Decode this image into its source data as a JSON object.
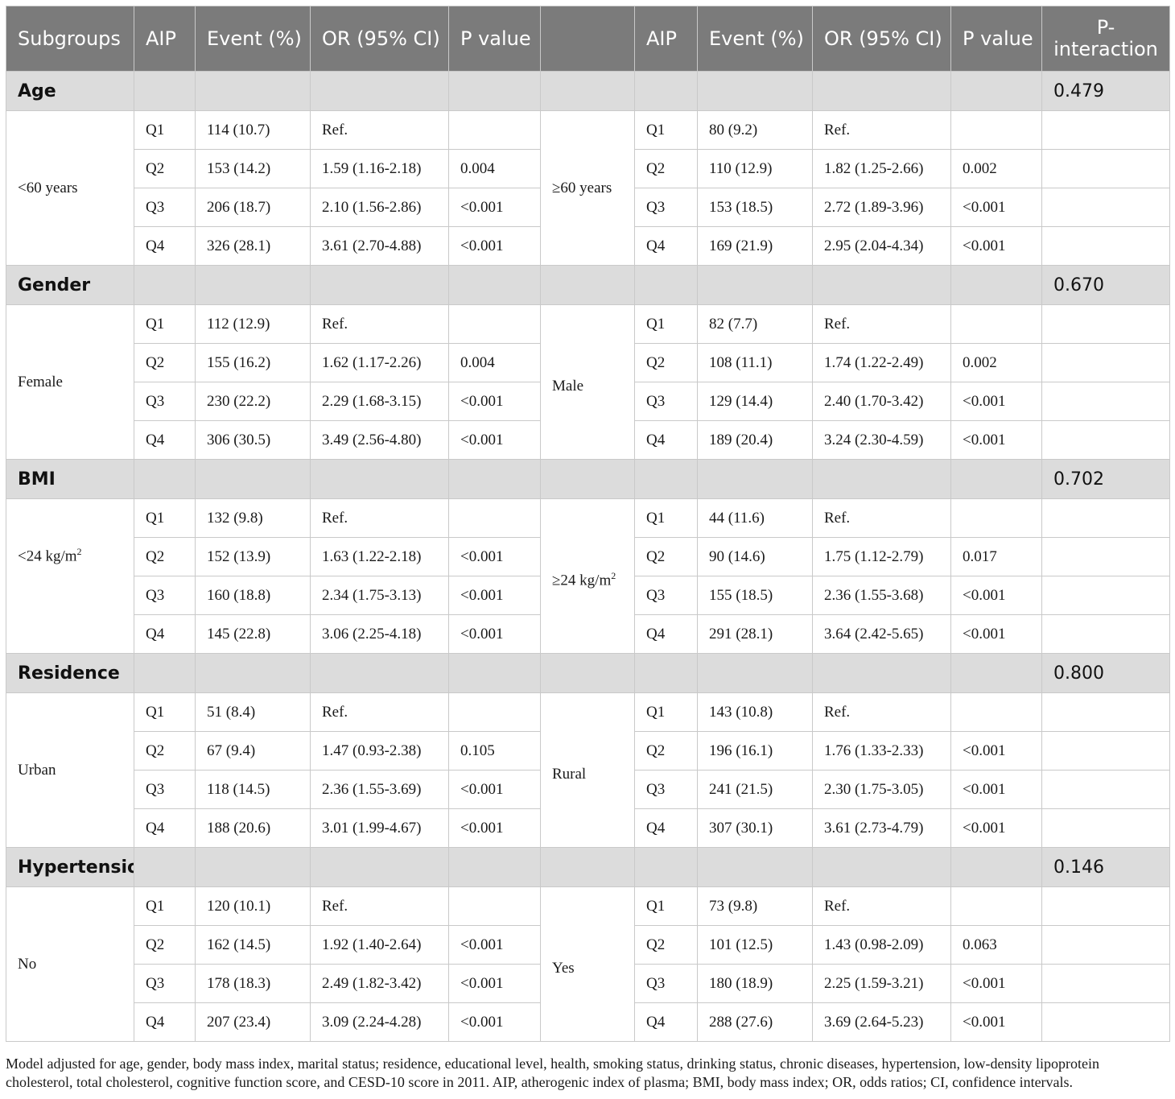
{
  "header": {
    "subgroups": "Subgroups",
    "aip1": "AIP",
    "event1": "Event (%)",
    "or1": "OR (95% CI)",
    "p1": "P value",
    "blank": "",
    "aip2": "AIP",
    "event2": "Event (%)",
    "or2": "OR (95% CI)",
    "p2": "P value",
    "pint": "P-interaction"
  },
  "groups": [
    {
      "name": "Age",
      "p_interaction": "0.479",
      "left_label": "<60 years",
      "right_label": "≥60 years",
      "rows": [
        {
          "q": "Q1",
          "e1": "114 (10.7)",
          "or1": "Ref.",
          "p1": "",
          "q2": "Q1",
          "e2": "80 (9.2)",
          "or2": "Ref.",
          "p2": ""
        },
        {
          "q": "Q2",
          "e1": "153 (14.2)",
          "or1": "1.59 (1.16-2.18)",
          "p1": "0.004",
          "q2": "Q2",
          "e2": "110 (12.9)",
          "or2": "1.82 (1.25-2.66)",
          "p2": "0.002"
        },
        {
          "q": "Q3",
          "e1": "206 (18.7)",
          "or1": "2.10 (1.56-2.86)",
          "p1": "<0.001",
          "q2": "Q3",
          "e2": "153 (18.5)",
          "or2": "2.72 (1.89-3.96)",
          "p2": "<0.001"
        },
        {
          "q": "Q4",
          "e1": "326 (28.1)",
          "or1": "3.61 (2.70-4.88)",
          "p1": "<0.001",
          "q2": "Q4",
          "e2": "169 (21.9)",
          "or2": "2.95 (2.04-4.34)",
          "p2": "<0.001"
        }
      ]
    },
    {
      "name": "Gender",
      "p_interaction": "0.670",
      "left_label": "Female",
      "right_label": "Male",
      "rows": [
        {
          "q": "Q1",
          "e1": "112 (12.9)",
          "or1": "Ref.",
          "p1": "",
          "q2": "Q1",
          "e2": "82 (7.7)",
          "or2": "Ref.",
          "p2": ""
        },
        {
          "q": "Q2",
          "e1": "155 (16.2)",
          "or1": "1.62 (1.17-2.26)",
          "p1": "0.004",
          "q2": "Q2",
          "e2": "108 (11.1)",
          "or2": "1.74 (1.22-2.49)",
          "p2": "0.002"
        },
        {
          "q": "Q3",
          "e1": "230 (22.2)",
          "or1": "2.29 (1.68-3.15)",
          "p1": "<0.001",
          "q2": "Q3",
          "e2": "129 (14.4)",
          "or2": "2.40 (1.70-3.42)",
          "p2": "<0.001"
        },
        {
          "q": "Q4",
          "e1": "306 (30.5)",
          "or1": "3.49 (2.56-4.80)",
          "p1": "<0.001",
          "q2": "Q4",
          "e2": "189 (20.4)",
          "or2": "3.24 (2.30-4.59)",
          "p2": "<0.001"
        }
      ]
    },
    {
      "name": "BMI",
      "p_interaction": "0.702",
      "left_label": "<24 kg/m",
      "left_sup": "2",
      "right_label": "≥24 kg/m",
      "right_sup": "2",
      "rows": [
        {
          "q": "Q1",
          "e1": "132 (9.8)",
          "or1": "Ref.",
          "p1": "",
          "q2": "Q1",
          "e2": "44 (11.6)",
          "or2": "Ref.",
          "p2": ""
        },
        {
          "q": "Q2",
          "e1": "152 (13.9)",
          "or1": "1.63 (1.22-2.18)",
          "p1": "<0.001",
          "q2": "Q2",
          "e2": "90 (14.6)",
          "or2": "1.75 (1.12-2.79)",
          "p2": "0.017"
        },
        {
          "q": "Q3",
          "e1": "160 (18.8)",
          "or1": "2.34 (1.75-3.13)",
          "p1": "<0.001",
          "q2": "Q3",
          "e2": "155 (18.5)",
          "or2": "2.36 (1.55-3.68)",
          "p2": "<0.001"
        },
        {
          "q": "Q4",
          "e1": "145 (22.8)",
          "or1": "3.06 (2.25-4.18)",
          "p1": "<0.001",
          "q2": "Q4",
          "e2": "291 (28.1)",
          "or2": "3.64 (2.42-5.65)",
          "p2": "<0.001"
        }
      ]
    },
    {
      "name": "Residence",
      "p_interaction": "0.800",
      "left_label": "Urban",
      "right_label": "Rural",
      "rows": [
        {
          "q": "Q1",
          "e1": "51 (8.4)",
          "or1": "Ref.",
          "p1": "",
          "q2": "Q1",
          "e2": "143 (10.8)",
          "or2": "Ref.",
          "p2": ""
        },
        {
          "q": "Q2",
          "e1": "67 (9.4)",
          "or1": "1.47 (0.93-2.38)",
          "p1": "0.105",
          "q2": "Q2",
          "e2": "196 (16.1)",
          "or2": "1.76 (1.33-2.33)",
          "p2": "<0.001"
        },
        {
          "q": "Q3",
          "e1": "118 (14.5)",
          "or1": "2.36 (1.55-3.69)",
          "p1": "<0.001",
          "q2": "Q3",
          "e2": "241 (21.5)",
          "or2": "2.30 (1.75-3.05)",
          "p2": "<0.001"
        },
        {
          "q": "Q4",
          "e1": "188 (20.6)",
          "or1": "3.01 (1.99-4.67)",
          "p1": "<0.001",
          "q2": "Q4",
          "e2": "307 (30.1)",
          "or2": "3.61 (2.73-4.79)",
          "p2": "<0.001"
        }
      ]
    },
    {
      "name": "Hypertension",
      "p_interaction": "0.146",
      "left_label": "No",
      "right_label": "Yes",
      "rows": [
        {
          "q": "Q1",
          "e1": "120 (10.1)",
          "or1": "Ref.",
          "p1": "",
          "q2": "Q1",
          "e2": "73 (9.8)",
          "or2": "Ref.",
          "p2": ""
        },
        {
          "q": "Q2",
          "e1": "162 (14.5)",
          "or1": "1.92 (1.40-2.64)",
          "p1": "<0.001",
          "q2": "Q2",
          "e2": "101 (12.5)",
          "or2": "1.43 (0.98-2.09)",
          "p2": "0.063"
        },
        {
          "q": "Q3",
          "e1": "178 (18.3)",
          "or1": "2.49 (1.82-3.42)",
          "p1": "<0.001",
          "q2": "Q3",
          "e2": "180 (18.9)",
          "or2": "2.25 (1.59-3.21)",
          "p2": "<0.001"
        },
        {
          "q": "Q4",
          "e1": "207 (23.4)",
          "or1": "3.09 (2.24-4.28)",
          "p1": "<0.001",
          "q2": "Q4",
          "e2": "288 (27.6)",
          "or2": "3.69 (2.64-5.23)",
          "p2": "<0.001"
        }
      ]
    }
  ],
  "footnote": "Model adjusted for age, gender, body mass index, marital status; residence, educational level, health, smoking status, drinking status, chronic diseases, hypertension, low-density lipoprotein cholesterol, total cholesterol, cognitive function score, and CESD-10 score in 2011. AIP, atherogenic index of plasma; BMI, body mass index; OR, odds ratios; CI, confidence intervals.",
  "colors": {
    "header_bg": "#7b7b7b",
    "group_bg": "#dcdcdc",
    "border": "#c9c9c9"
  }
}
